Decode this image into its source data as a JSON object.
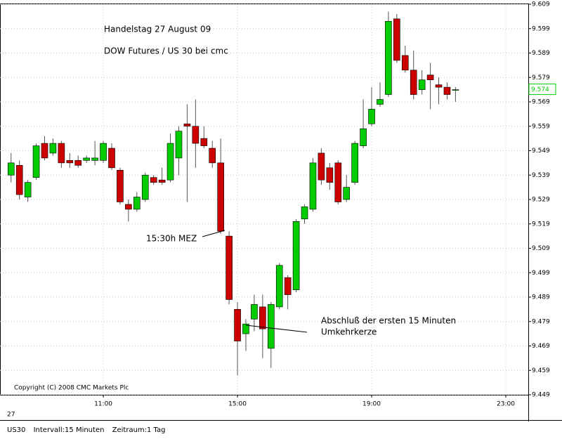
{
  "chart_data": {
    "type": "candlestick",
    "annotations": {
      "title": "Handelstag 27 August 09",
      "subtitle": "DOW Futures / US 30 bei cmc",
      "marker_1": "15:30h MEZ",
      "marker_2_line_1": "Abschluß der ersten 15 Minuten",
      "marker_2_line_2": "Umkehrkerze",
      "copyright": "Copyright (C) 2008 CMC Markets Plc",
      "date_label": "27"
    },
    "x": [
      8.25,
      8.5,
      8.75,
      9,
      9.25,
      9.5,
      9.75,
      10,
      10.25,
      10.5,
      10.75,
      11,
      11.25,
      11.5,
      11.75,
      12,
      12.25,
      12.5,
      12.75,
      13,
      13.25,
      13.5,
      13.75,
      14,
      14.25,
      14.5,
      14.75,
      15,
      15.25,
      15.5,
      15.75,
      16,
      16.25,
      16.5,
      16.75,
      17,
      17.25,
      17.5,
      17.75,
      18,
      18.25,
      18.5,
      18.75,
      19,
      19.25,
      19.5,
      19.75,
      20,
      20.25,
      20.5,
      20.75,
      21,
      21.25,
      21.5
    ],
    "open": [
      9.539,
      9.543,
      9.53,
      9.538,
      9.552,
      9.548,
      9.552,
      9.545,
      9.545,
      9.545,
      9.545,
      9.545,
      9.55,
      9.541,
      9.527,
      9.525,
      9.529,
      9.538,
      9.537,
      9.537,
      9.546,
      9.56,
      9.559,
      9.554,
      9.55,
      9.544,
      9.514,
      9.484,
      9.474,
      9.48,
      9.485,
      9.468,
      9.485,
      9.497,
      9.492,
      9.521,
      9.525,
      9.548,
      9.542,
      9.544,
      9.529,
      9.536,
      9.551,
      9.56,
      9.568,
      9.572,
      9.603,
      9.588,
      9.582,
      9.574,
      9.58,
      9.576,
      9.575,
      9.574
    ],
    "high": [
      9.548,
      9.545,
      9.537,
      9.552,
      9.555,
      9.554,
      9.553,
      9.548,
      9.547,
      9.547,
      9.553,
      9.553,
      9.552,
      9.542,
      9.529,
      9.532,
      9.54,
      9.539,
      9.542,
      9.556,
      9.559,
      9.568,
      9.57,
      9.559,
      9.553,
      9.554,
      9.516,
      9.487,
      9.48,
      9.49,
      9.49,
      9.487,
      9.503,
      9.498,
      9.521,
      9.527,
      9.546,
      9.55,
      9.544,
      9.545,
      9.539,
      9.553,
      9.57,
      9.575,
      9.577,
      9.606,
      9.605,
      9.592,
      9.59,
      9.582,
      9.585,
      9.579,
      9.577,
      9.575
    ],
    "low": [
      9.536,
      9.529,
      9.528,
      9.537,
      9.545,
      9.547,
      9.542,
      9.542,
      9.542,
      9.544,
      9.543,
      9.544,
      9.541,
      9.527,
      9.52,
      9.524,
      9.528,
      9.535,
      9.535,
      9.536,
      9.539,
      9.528,
      9.542,
      9.55,
      9.542,
      9.515,
      9.486,
      9.457,
      9.467,
      9.475,
      9.464,
      9.46,
      9.484,
      9.484,
      9.491,
      9.519,
      9.524,
      9.535,
      9.533,
      9.527,
      9.528,
      9.535,
      9.55,
      9.559,
      9.567,
      9.571,
      9.585,
      9.581,
      9.57,
      9.572,
      9.566,
      9.568,
      9.57,
      9.569
    ],
    "close": [
      9.544,
      9.531,
      9.536,
      9.551,
      9.546,
      9.552,
      9.544,
      9.544,
      9.543,
      9.546,
      9.546,
      9.552,
      9.542,
      9.528,
      9.525,
      9.53,
      9.539,
      9.536,
      9.536,
      9.552,
      9.557,
      9.559,
      9.552,
      9.551,
      9.544,
      9.516,
      9.488,
      9.471,
      9.478,
      9.486,
      9.476,
      9.486,
      9.502,
      9.49,
      9.52,
      9.526,
      9.544,
      9.537,
      9.536,
      9.528,
      9.534,
      9.552,
      9.558,
      9.566,
      9.57,
      9.602,
      9.586,
      9.582,
      9.572,
      9.578,
      9.578,
      9.575,
      9.572,
      9.574
    ],
    "up_color": "#00cc00",
    "down_color": "#cc0000",
    "last_price": 9.574,
    "xlim": [
      7.92,
      23.67
    ],
    "xticks": [
      {
        "value": 11,
        "label": "11:00"
      },
      {
        "value": 15,
        "label": "15:00"
      },
      {
        "value": 19,
        "label": "19:00"
      },
      {
        "value": 23,
        "label": "23:00"
      }
    ],
    "ylim": [
      9.449,
      9.609
    ],
    "yticks": [
      9.449,
      9.459,
      9.469,
      9.479,
      9.489,
      9.499,
      9.509,
      9.519,
      9.529,
      9.539,
      9.549,
      9.559,
      9.569,
      9.579,
      9.589,
      9.599,
      9.609
    ],
    "grid": true
  },
  "status_bar": {
    "symbol": "US30",
    "interval": "Intervall:15 Minuten",
    "range": "Zeitraum:1 Tag"
  }
}
